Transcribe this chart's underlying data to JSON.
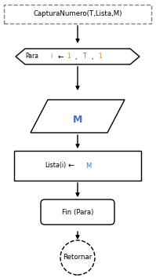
{
  "title_text": "CapturaNumero(T,Lista,M)",
  "input_text": "M",
  "fin_text": "Fin (Para)",
  "retornar_text": "Retornar",
  "bg_color": "#ffffff",
  "box_edge_color": "#000000",
  "text_color_black": "#000000",
  "text_color_blue": "#4472c4",
  "text_color_orange": "#ed7d31",
  "arrow_color": "#000000",
  "dashed_color": "#808080",
  "figsize": [
    1.99,
    3.54
  ],
  "dpi": 100
}
